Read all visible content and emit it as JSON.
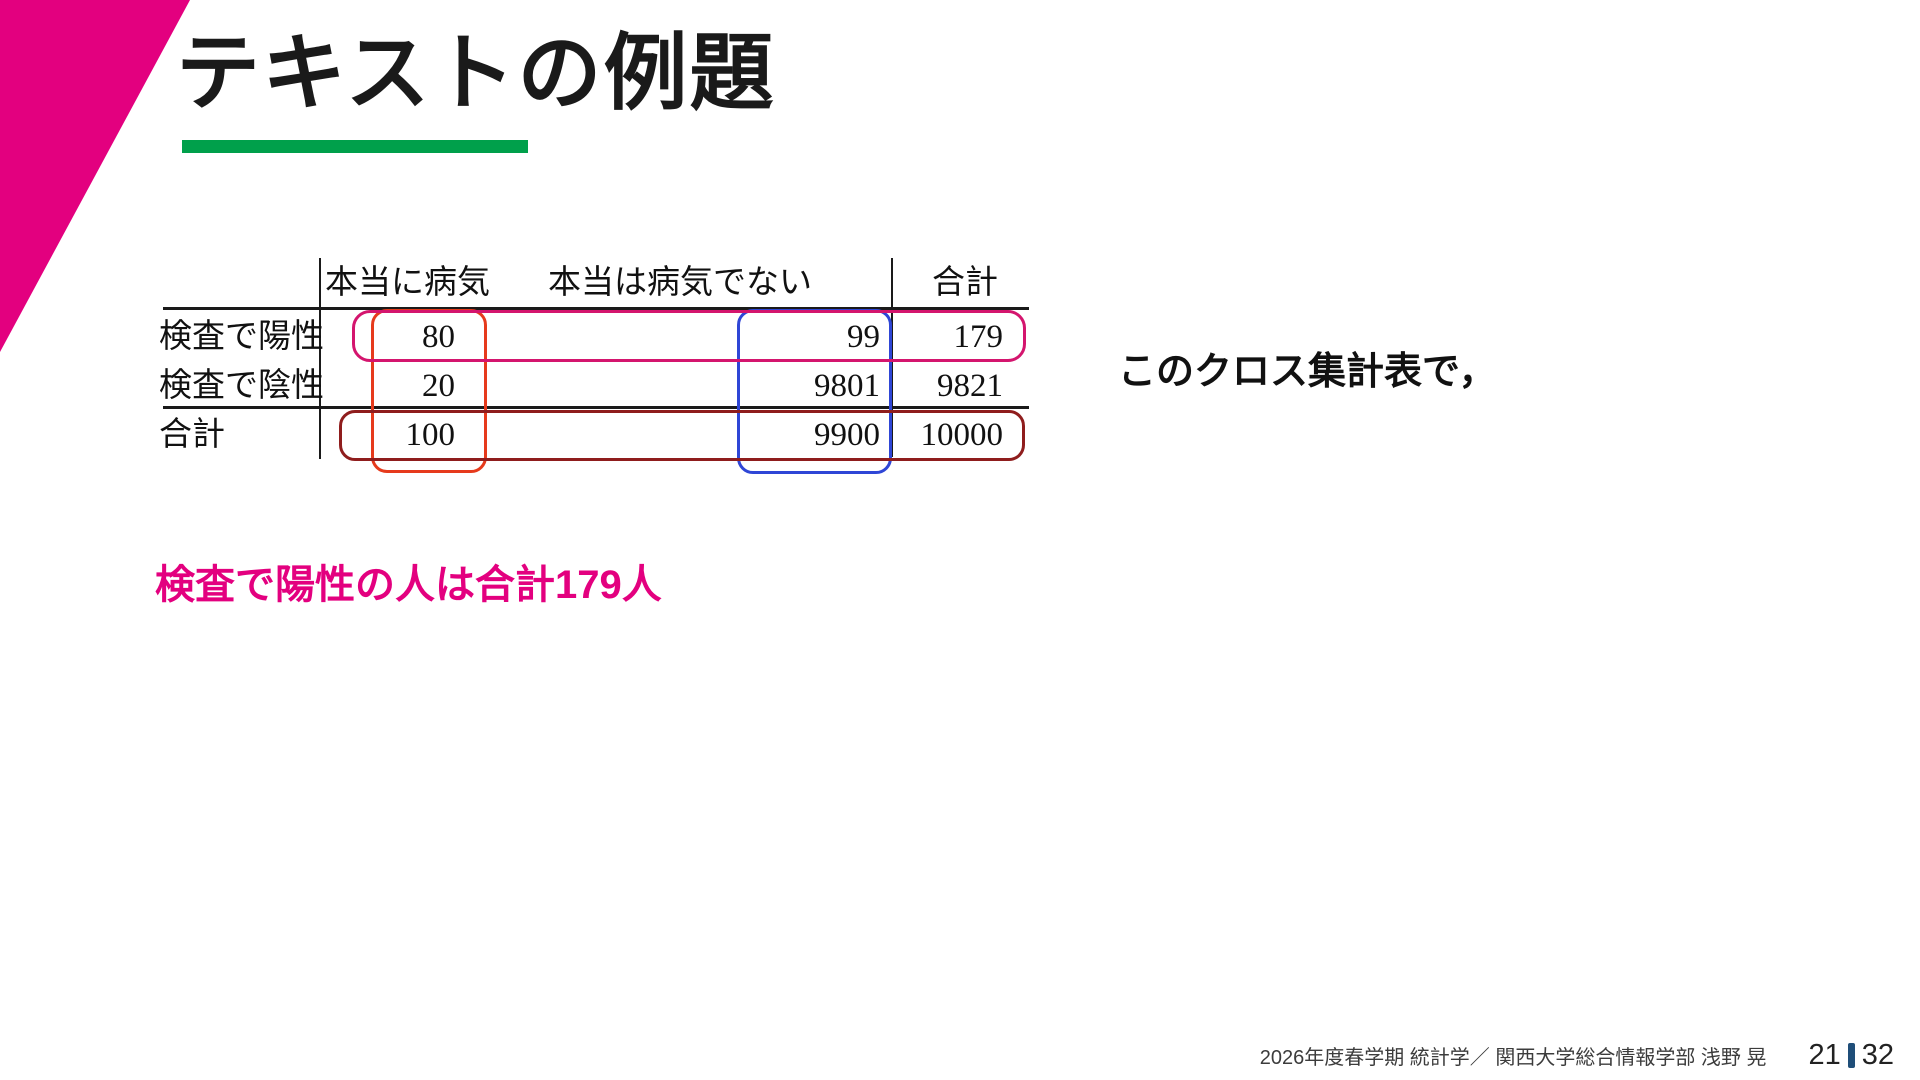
{
  "slide": {
    "title": "テキストの例題",
    "side_note": "このクロス集計表で，",
    "statement": "検査で陽性の人は合計179人"
  },
  "table": {
    "col_headers": [
      "本当に病気",
      "本当は病気でない",
      "合計"
    ],
    "rows": [
      {
        "label": "検査で陽性",
        "values": [
          "80",
          "99",
          "179"
        ]
      },
      {
        "label": "検査で陰性",
        "values": [
          "20",
          "9801",
          "9821"
        ]
      },
      {
        "label": "合計",
        "values": [
          "100",
          "9900",
          "10000"
        ]
      }
    ],
    "annotations": [
      {
        "id": "row-test-positive",
        "wraps": [
          "80",
          "99",
          "179"
        ],
        "color": "#d4156e"
      },
      {
        "id": "col-really-diseased",
        "wraps": [
          "80",
          "20",
          "100"
        ],
        "color": "#e63a1c"
      },
      {
        "id": "col-not-diseased",
        "wraps": [
          "99",
          "9801",
          "9900"
        ],
        "color": "#2f46d6"
      },
      {
        "id": "row-grand-total",
        "wraps": [
          "100",
          "9900",
          "10000"
        ],
        "color": "#8f1d1d"
      }
    ]
  },
  "footer": {
    "course_info": "2026年度春学期  統計学／  関西大学総合情報学部  浅野 晃",
    "page_current": "21",
    "page_total": "32"
  },
  "colors": {
    "accent_magenta": "#e3007f",
    "accent_green": "#00a04b",
    "annotation_pink": "#d4156e",
    "annotation_red": "#e63a1c",
    "annotation_blue": "#2f46d6",
    "annotation_dark_red": "#8f1d1d",
    "footer_page_bar": "#1f4e79"
  }
}
